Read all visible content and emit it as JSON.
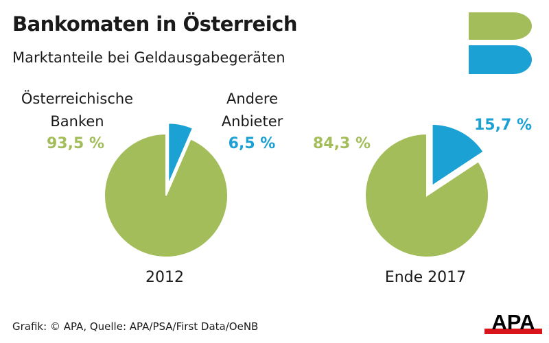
{
  "colors": {
    "green": "#a3bd5a",
    "blue": "#1ba1d3",
    "logo_red": "#d9141b"
  },
  "header": {
    "title": "Bankomaten in Österreich",
    "subtitle": "Marktanteile bei Geldausgabegeräten"
  },
  "chart_data": [
    {
      "type": "pie",
      "title": "2012",
      "series": [
        {
          "name": "Österreichische Banken",
          "label": "93,5 %",
          "value": 93.5
        },
        {
          "name": "Andere Anbieter",
          "label": "6,5 %",
          "value": 6.5
        }
      ]
    },
    {
      "type": "pie",
      "title": "Ende 2017",
      "series": [
        {
          "name": "Österreichische Banken",
          "label": "84,3 %",
          "value": 84.3
        },
        {
          "name": "Andere Anbieter",
          "label": "15,7 %",
          "value": 15.7
        }
      ]
    }
  ],
  "legend": {
    "banks_line1": "Österreichische",
    "banks_line2": "Banken",
    "other_line1": "Andere",
    "other_line2": "Anbieter"
  },
  "footer": {
    "credit": "Grafik: © APA, Quelle: APA/PSA/First Data/OeNB"
  },
  "logo": {
    "text": "APA"
  }
}
